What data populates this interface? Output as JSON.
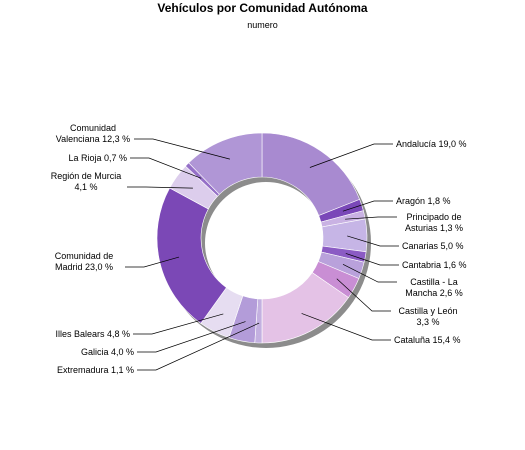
{
  "chart_data": {
    "type": "pie",
    "title": "Vehículos por Comunidad Autónoma",
    "subtitle": "numero",
    "slices": [
      {
        "label": [
          "Andalucía 19,0 %"
        ],
        "value": 19.0,
        "color": "#a88ad0"
      },
      {
        "label": [
          "Aragón 1,8 %"
        ],
        "value": 1.8,
        "color": "#7a48b8"
      },
      {
        "label": [
          "Principado de",
          "Asturias 1,3 %"
        ],
        "value": 1.3,
        "color": "#c9b2e3"
      },
      {
        "label": [
          "Canarias 5,0 %"
        ],
        "value": 5.0,
        "color": "#c6b5e6"
      },
      {
        "label": [
          "Cantabria 1,6 %"
        ],
        "value": 1.6,
        "color": "#8b5bc4"
      },
      {
        "label": [
          "Castilla - La",
          "Mancha 2,6 %"
        ],
        "value": 2.6,
        "color": "#b9a1db"
      },
      {
        "label": [
          "Castilla y León",
          "3,3 %"
        ],
        "value": 3.3,
        "color": "#c98ed4"
      },
      {
        "label": [
          "Cataluña 15,4 %"
        ],
        "value": 15.4,
        "color": "#e4c2e6"
      },
      {
        "label": [
          "Extremadura 1,1 %"
        ],
        "value": 1.1,
        "color": "#c3b0e0"
      },
      {
        "label": [
          "Galicia 4,0 %"
        ],
        "value": 4.0,
        "color": "#b39cd9"
      },
      {
        "label": [
          "Illes Balears 4,8 %"
        ],
        "value": 4.8,
        "color": "#e6ddf1"
      },
      {
        "label": [
          "Comunidad de",
          "Madrid 23,0 %"
        ],
        "value": 23.0,
        "color": "#7b48b6"
      },
      {
        "label": [
          "Región de Murcia",
          "4,1 %"
        ],
        "value": 4.1,
        "color": "#dccdec"
      },
      {
        "label": [
          "La Rioja 0,7 %"
        ],
        "value": 0.7,
        "color": "#9570c7"
      },
      {
        "label": [
          "Comunidad",
          "Valenciana 12,3 %"
        ],
        "value": 12.3,
        "color": "#b096d6"
      }
    ],
    "start_angle_deg": 0,
    "direction": "clockwise",
    "donut": true
  }
}
